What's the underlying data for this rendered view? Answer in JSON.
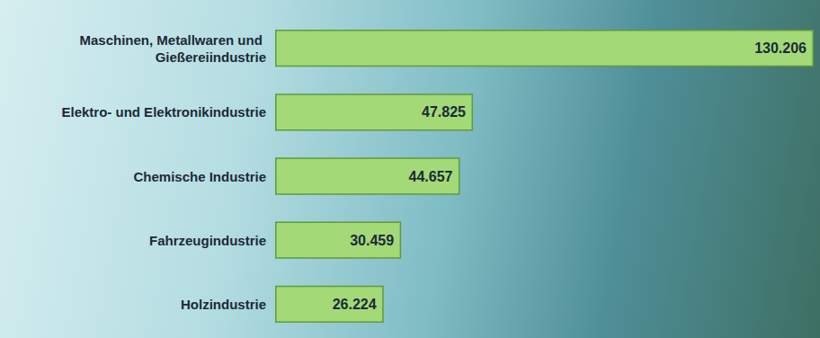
{
  "chart_data": {
    "type": "bar",
    "orientation": "horizontal",
    "categories": [
      "Maschinen, Metallwaren und Gießereiindustrie",
      "Elektro- und Elektronikindustrie",
      "Chemische Industrie",
      "Fahrzeugindustrie",
      "Holzindustrie"
    ],
    "values": [
      130206,
      47825,
      44657,
      30459,
      26224
    ],
    "value_labels": [
      "130.206",
      "47.825",
      "44.657",
      "30.459",
      "26.224"
    ],
    "color": "#a3d977",
    "xlim": [
      0,
      130206
    ],
    "grid": false,
    "data_labels": true,
    "tick_labels": false
  }
}
